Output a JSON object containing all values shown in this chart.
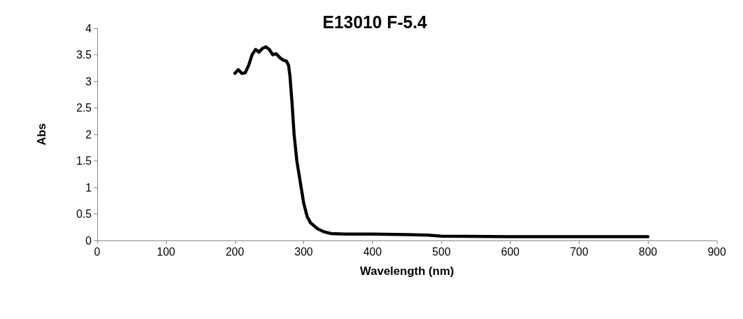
{
  "chart_data": {
    "type": "line",
    "title": "E13010 F-5.4",
    "xlabel": "Wavelength (nm)",
    "ylabel": "Abs",
    "xlim": [
      0,
      900
    ],
    "xticks": [
      0,
      100,
      200,
      300,
      400,
      500,
      600,
      700,
      800,
      900
    ],
    "ylim": [
      0,
      4
    ],
    "yticks": [
      0,
      0.5,
      1,
      1.5,
      2,
      2.5,
      3,
      3.5,
      4
    ],
    "grid": false,
    "marker": "none",
    "line_style": "solid",
    "series": [
      {
        "color": "#000000",
        "x": [
          200,
          205,
          210,
          215,
          220,
          225,
          230,
          235,
          240,
          245,
          250,
          255,
          260,
          265,
          270,
          275,
          278,
          280,
          283,
          286,
          290,
          295,
          300,
          305,
          310,
          320,
          330,
          340,
          360,
          400,
          450,
          480,
          500,
          600,
          700,
          800
        ],
        "values": [
          3.15,
          3.22,
          3.15,
          3.16,
          3.3,
          3.5,
          3.6,
          3.55,
          3.62,
          3.65,
          3.6,
          3.5,
          3.52,
          3.45,
          3.4,
          3.38,
          3.3,
          3.1,
          2.6,
          2.0,
          1.5,
          1.1,
          0.7,
          0.45,
          0.33,
          0.22,
          0.16,
          0.13,
          0.12,
          0.12,
          0.11,
          0.1,
          0.08,
          0.07,
          0.07,
          0.07
        ]
      }
    ]
  }
}
